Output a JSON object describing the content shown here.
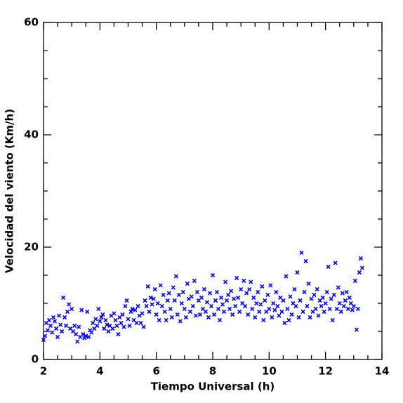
{
  "chart_data": {
    "type": "scatter",
    "xlabel": "Tiempo Universal (h)",
    "ylabel": "Velocidad del viento (Km/h)",
    "xlim": [
      2,
      14
    ],
    "ylim": [
      0,
      60
    ],
    "xticks": [
      2,
      4,
      6,
      8,
      10,
      12,
      14
    ],
    "yticks": [
      0,
      20,
      40,
      60
    ],
    "xminorticks": [
      2.5,
      3,
      3.5,
      4.5,
      5,
      5.5,
      6.5,
      7,
      7.5,
      8.5,
      9,
      9.5,
      10.5,
      11,
      11.5,
      12.5,
      13,
      13.5
    ],
    "yminorticks": [
      5,
      10,
      15,
      25,
      30,
      35,
      45,
      50,
      55
    ],
    "color": "#0000ff",
    "x": [
      2.0,
      2.05,
      2.1,
      2.15,
      2.2,
      2.25,
      2.3,
      2.35,
      2.4,
      2.45,
      2.5,
      2.55,
      2.6,
      2.65,
      2.7,
      2.75,
      2.8,
      2.85,
      2.9,
      2.95,
      3.0,
      3.05,
      3.1,
      3.15,
      3.2,
      3.25,
      3.3,
      3.35,
      3.4,
      3.45,
      3.5,
      3.55,
      3.6,
      3.65,
      3.7,
      3.75,
      3.8,
      3.85,
      3.9,
      3.95,
      4.0,
      4.05,
      4.1,
      4.15,
      4.2,
      4.25,
      4.3,
      4.35,
      4.4,
      4.45,
      4.5,
      4.55,
      4.6,
      4.65,
      4.7,
      4.75,
      4.8,
      4.85,
      4.9,
      4.95,
      5.0,
      5.05,
      5.1,
      5.15,
      5.2,
      5.25,
      5.3,
      5.35,
      5.4,
      5.45,
      5.5,
      5.55,
      5.6,
      5.65,
      5.7,
      5.75,
      5.8,
      5.85,
      5.9,
      5.95,
      6.0,
      6.05,
      6.1,
      6.15,
      6.2,
      6.25,
      6.3,
      6.35,
      6.4,
      6.45,
      6.5,
      6.55,
      6.6,
      6.65,
      6.7,
      6.75,
      6.8,
      6.85,
      6.9,
      6.95,
      7.0,
      7.05,
      7.1,
      7.15,
      7.2,
      7.25,
      7.3,
      7.35,
      7.4,
      7.45,
      7.5,
      7.55,
      7.6,
      7.65,
      7.7,
      7.75,
      7.8,
      7.85,
      7.9,
      7.95,
      8.0,
      8.05,
      8.1,
      8.15,
      8.2,
      8.25,
      8.3,
      8.35,
      8.4,
      8.45,
      8.5,
      8.55,
      8.6,
      8.65,
      8.7,
      8.75,
      8.8,
      8.85,
      8.9,
      8.95,
      9.0,
      9.05,
      9.1,
      9.15,
      9.2,
      9.25,
      9.3,
      9.35,
      9.4,
      9.45,
      9.5,
      9.55,
      9.6,
      9.65,
      9.7,
      9.75,
      9.8,
      9.85,
      9.9,
      9.95,
      10.0,
      10.05,
      10.1,
      10.15,
      10.2,
      10.25,
      10.3,
      10.35,
      10.4,
      10.45,
      10.5,
      10.55,
      10.6,
      10.65,
      10.7,
      10.75,
      10.8,
      10.85,
      10.9,
      10.95,
      11.0,
      11.05,
      11.1,
      11.15,
      11.2,
      11.25,
      11.3,
      11.35,
      11.4,
      11.45,
      11.5,
      11.55,
      11.6,
      11.65,
      11.7,
      11.75,
      11.8,
      11.85,
      11.9,
      11.95,
      12.0,
      12.05,
      12.1,
      12.15,
      12.2,
      12.25,
      12.3,
      12.35,
      12.4,
      12.45,
      12.5,
      12.55,
      12.6,
      12.65,
      12.7,
      12.75,
      12.8,
      12.85,
      12.9,
      12.95,
      13.0,
      13.05,
      13.1,
      13.15,
      13.2,
      13.25,
      13.3
    ],
    "values": [
      3.5,
      4.2,
      6.5,
      5.2,
      7.0,
      6.0,
      4.8,
      7.5,
      6.8,
      5.5,
      4.0,
      7.8,
      6.2,
      5.0,
      11.0,
      7.5,
      6.0,
      8.5,
      9.8,
      5.5,
      9.0,
      5.0,
      6.0,
      4.5,
      3.2,
      5.8,
      4.0,
      8.8,
      4.5,
      3.8,
      4.2,
      8.5,
      4.0,
      5.2,
      4.8,
      6.5,
      5.5,
      7.2,
      6.0,
      9.0,
      6.8,
      7.5,
      8.0,
      5.5,
      7.0,
      6.2,
      5.0,
      6.0,
      7.8,
      5.5,
      8.2,
      7.0,
      6.0,
      4.5,
      7.5,
      6.5,
      8.0,
      5.8,
      9.5,
      10.5,
      7.2,
      6.0,
      8.5,
      9.0,
      7.0,
      8.8,
      6.5,
      9.5,
      7.8,
      6.5,
      8.2,
      5.8,
      10.5,
      9.5,
      13.0,
      8.5,
      11.0,
      9.8,
      10.8,
      12.5,
      8.0,
      10.0,
      7.0,
      13.2,
      9.5,
      11.5,
      8.5,
      7.0,
      10.5,
      11.8,
      9.0,
      7.5,
      12.8,
      10.5,
      14.8,
      8.0,
      11.5,
      6.8,
      10.0,
      12.0,
      9.0,
      7.5,
      13.5,
      10.8,
      8.5,
      11.2,
      9.5,
      14.0,
      7.8,
      12.0,
      10.5,
      8.0,
      11.0,
      9.0,
      12.5,
      8.5,
      10.2,
      7.5,
      11.8,
      9.5,
      15.0,
      8.0,
      10.5,
      12.0,
      9.0,
      7.0,
      11.0,
      9.8,
      8.5,
      13.8,
      10.5,
      11.5,
      9.0,
      12.2,
      8.0,
      10.8,
      9.5,
      14.5,
      11.0,
      8.5,
      12.5,
      10.0,
      14.0,
      9.5,
      11.8,
      8.0,
      12.5,
      13.8,
      9.0,
      11.0,
      7.5,
      10.0,
      12.0,
      8.5,
      9.8,
      13.0,
      7.0,
      10.5,
      8.5,
      11.5,
      9.0,
      13.2,
      7.5,
      10.0,
      8.8,
      12.0,
      9.5,
      7.8,
      11.0,
      8.5,
      10.5,
      6.5,
      14.8,
      9.0,
      7.0,
      11.2,
      8.0,
      10.0,
      12.5,
      9.5,
      15.5,
      7.5,
      10.5,
      19.0,
      8.5,
      12.0,
      17.5,
      9.5,
      13.5,
      7.5,
      10.8,
      8.5,
      11.5,
      9.0,
      12.5,
      7.8,
      10.5,
      9.5,
      11.0,
      8.5,
      10.0,
      12.0,
      16.5,
      9.0,
      10.8,
      7.0,
      11.5,
      17.2,
      9.0,
      12.8,
      10.0,
      8.5,
      11.8,
      9.5,
      10.5,
      12.0,
      9.0,
      11.0,
      10.0,
      8.8,
      9.5,
      14.0,
      5.3,
      9.0,
      15.5,
      18.0,
      16.3
    ]
  }
}
